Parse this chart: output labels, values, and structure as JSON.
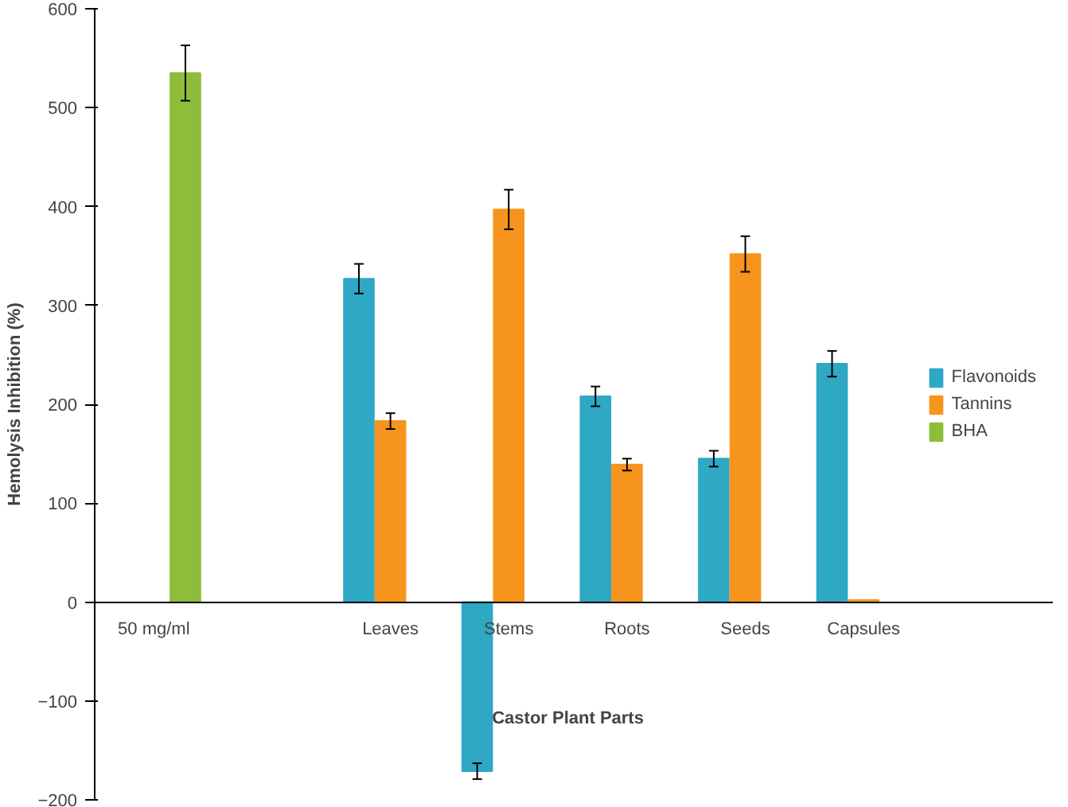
{
  "chart_data": {
    "type": "bar",
    "xlabel": "Castor Plant Parts",
    "ylabel": "Hemolysis Inhibition (%)",
    "categories": [
      "50 mg/ml",
      null,
      "Leaves",
      "Stems",
      "Roots",
      "Seeds",
      "Capsules"
    ],
    "series": [
      {
        "name": "Flavonoids",
        "color": "#2fa8c6",
        "values": [
          null,
          null,
          327,
          -171,
          208,
          145,
          241
        ],
        "errors": [
          null,
          null,
          15,
          8,
          10,
          8,
          13
        ]
      },
      {
        "name": "Tannins",
        "color": "#f7941d",
        "values": [
          null,
          null,
          183,
          397,
          139,
          352,
          2
        ],
        "errors": [
          null,
          null,
          8,
          20,
          6,
          18,
          null
        ]
      },
      {
        "name": "BHA",
        "color": "#8dbd3a",
        "values": [
          535,
          null,
          null,
          null,
          null,
          null,
          null
        ],
        "errors": [
          28,
          null,
          null,
          null,
          null,
          null,
          null
        ]
      }
    ],
    "ylim": [
      -200,
      600
    ],
    "yticks": [
      -200,
      -100,
      0,
      100,
      200,
      300,
      400,
      500,
      600
    ],
    "grid": false,
    "legend": "right"
  }
}
